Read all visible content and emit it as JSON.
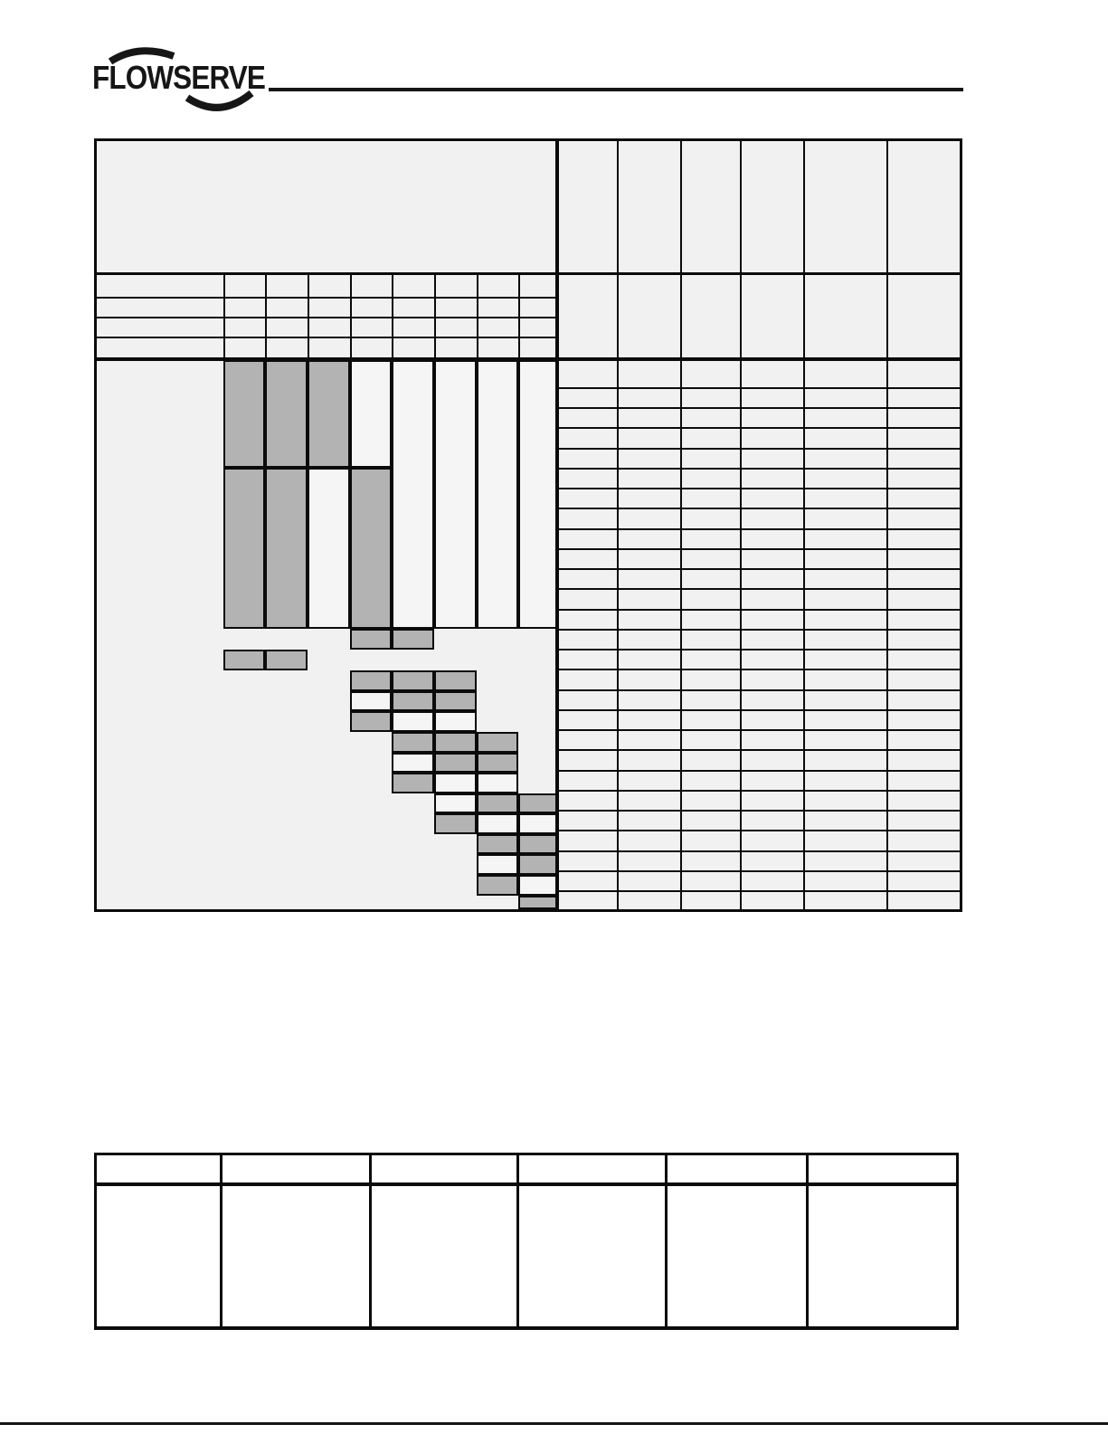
{
  "page": {
    "background": "#ffffff"
  },
  "logo": {
    "text": "FLOWSERVE",
    "color": "#161616"
  },
  "colors": {
    "table_background": "#f0f1f0",
    "shaded_cell": "#b2b3b2",
    "unshaded_cell": "#f4f5f4",
    "grid_line": "#0b0b0b",
    "rule": "#161616"
  },
  "selection_table": {
    "description_visible_text": "",
    "header": {
      "blank_left_panel": true,
      "right_columns": 6,
      "all_cells_blank": true
    },
    "subheader": {
      "rows": 4,
      "label_column": 1,
      "narrow_columns": 8,
      "all_cells_blank": true
    },
    "body": {
      "right_rows": 27,
      "right_columns": 6,
      "all_cells_blank": true
    },
    "shading": {
      "rows": [
        {
          "id": "B1",
          "gray": [
            "c1",
            "c2",
            "c3"
          ],
          "light": [
            "c4"
          ]
        },
        {
          "id": "TALL",
          "gray": [],
          "light": [
            "c5",
            "c6",
            "c7",
            "c8"
          ]
        },
        {
          "id": "B2",
          "gray": [
            "c1",
            "c2",
            "c4"
          ],
          "light": [
            "c3"
          ]
        },
        {
          "id": "r14",
          "gray": [
            "c4",
            "c5"
          ],
          "light": []
        },
        {
          "id": "r15",
          "gray": [
            "c1",
            "c2"
          ],
          "light": []
        },
        {
          "id": "r16",
          "gray": [
            "c4",
            "c5",
            "c6"
          ],
          "light": []
        },
        {
          "id": "r17",
          "gray": [
            "c5",
            "c6"
          ],
          "light": [
            "c4"
          ]
        },
        {
          "id": "r18",
          "gray": [
            "c4"
          ],
          "light": [
            "c5",
            "c6"
          ]
        },
        {
          "id": "r19",
          "gray": [
            "c5",
            "c6",
            "c7"
          ],
          "light": []
        },
        {
          "id": "r20",
          "gray": [
            "c6",
            "c7"
          ],
          "light": [
            "c5"
          ]
        },
        {
          "id": "r21",
          "gray": [
            "c5"
          ],
          "light": [
            "c6",
            "c7"
          ]
        },
        {
          "id": "r22",
          "gray": [
            "c7",
            "c8"
          ],
          "light": [
            "c6"
          ]
        },
        {
          "id": "r23",
          "gray": [
            "c6"
          ],
          "light": [
            "c7",
            "c8"
          ]
        },
        {
          "id": "r24",
          "gray": [
            "c7",
            "c8"
          ],
          "light": []
        },
        {
          "id": "r25",
          "gray": [
            "c8"
          ],
          "light": [
            "c7"
          ]
        },
        {
          "id": "r26",
          "gray": [
            "c7"
          ],
          "light": [
            "c8"
          ]
        },
        {
          "id": "r27",
          "gray": [
            "c8"
          ],
          "light": []
        }
      ]
    }
  },
  "bottom_table": {
    "columns": 6,
    "header_rows": 1,
    "body_rows": 1,
    "all_cells_blank": true
  }
}
